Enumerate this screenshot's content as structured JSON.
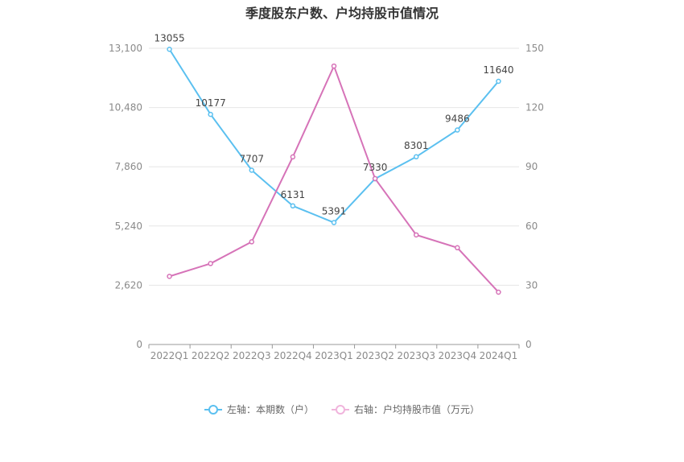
{
  "title": "季度股东户数、户均持股市值情况",
  "chart_data": {
    "type": "line",
    "title": "季度股东户数、户均持股市值情况",
    "categories": [
      "2022Q1",
      "2022Q2",
      "2022Q3",
      "2022Q4",
      "2023Q1",
      "2023Q2",
      "2023Q3",
      "2023Q4",
      "2024Q1"
    ],
    "left_axis": {
      "min": 0,
      "max": 13100,
      "ticks": [
        0,
        2620,
        5240,
        7860,
        10480,
        13100
      ],
      "tick_labels": [
        "0",
        "2,620",
        "5,240",
        "7,860",
        "10,480",
        "13,100"
      ]
    },
    "right_axis": {
      "min": 0,
      "max": 150,
      "ticks": [
        0,
        30,
        60,
        90,
        120,
        150
      ],
      "tick_labels": [
        "0",
        "30",
        "60",
        "90",
        "120",
        "150"
      ]
    },
    "grid": true,
    "legend_position": "bottom",
    "series": [
      {
        "name": "左轴：本期数（户）",
        "axis": "left",
        "color": "#5bc0f0",
        "values": [
          13055,
          10177,
          7707,
          6131,
          5391,
          7330,
          8301,
          9486,
          11640
        ],
        "labels": [
          "13055",
          "10177",
          "7707",
          "6131",
          "5391",
          "7330",
          "8301",
          "9486",
          "11640"
        ]
      },
      {
        "name": "右轴：户均持股市值（万元）",
        "axis": "right",
        "color": "#d673b8",
        "values": [
          34.5,
          41,
          52,
          95,
          141,
          84,
          55.5,
          49,
          26.5
        ]
      }
    ]
  }
}
